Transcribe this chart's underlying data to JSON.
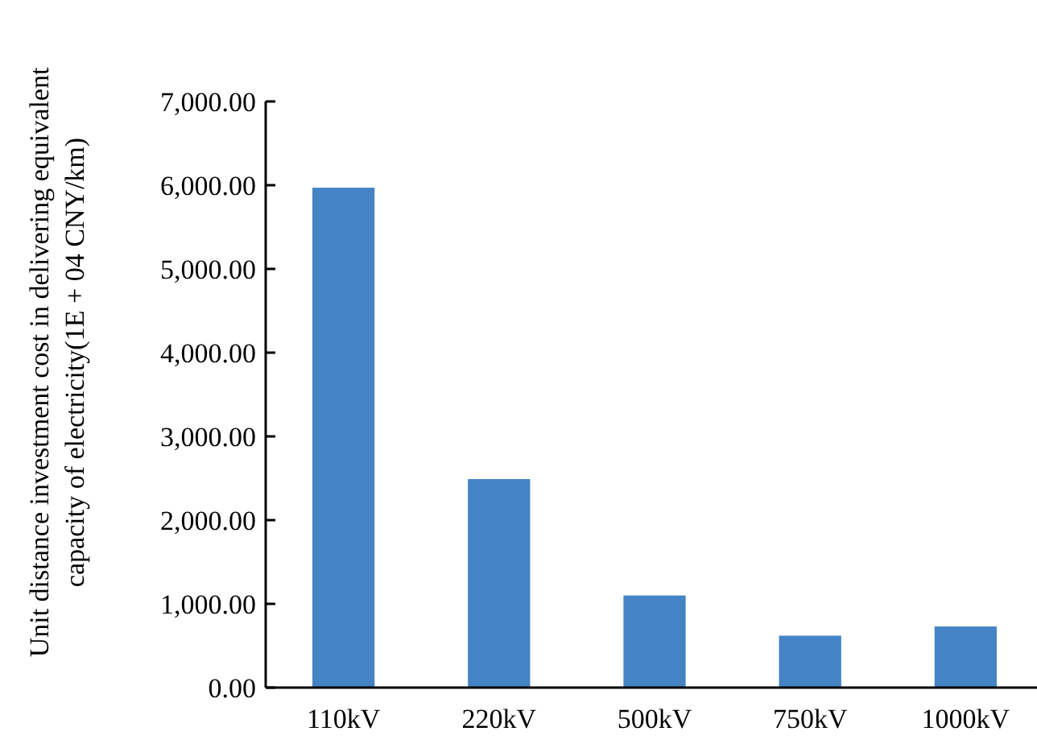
{
  "chart_data": {
    "type": "bar",
    "ylabel": "Unit distance investment cost in delivering equivalent capacity of electricity(1E + 04 CNY/km)",
    "categories": [
      "110kV",
      "220kV",
      "500kV",
      "750kV",
      "1000kV"
    ],
    "values": [
      5970,
      2490,
      1100,
      620,
      730
    ],
    "color": "#4484c4",
    "ylim": [
      0,
      7000
    ],
    "yticks": [
      {
        "value": 0,
        "label": "0.00"
      },
      {
        "value": 1000,
        "label": "1,000.00"
      },
      {
        "value": 2000,
        "label": "2,000.00"
      },
      {
        "value": 3000,
        "label": "3,000.00"
      },
      {
        "value": 4000,
        "label": "4,000.00"
      },
      {
        "value": 5000,
        "label": "5,000.00"
      },
      {
        "value": 6000,
        "label": "6,000.00"
      },
      {
        "value": 7000,
        "label": "7,000.00"
      }
    ],
    "grid": false
  }
}
